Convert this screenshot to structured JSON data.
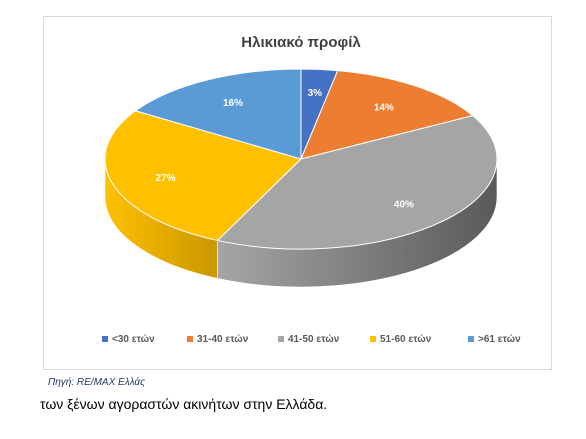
{
  "chart_data": {
    "type": "pie",
    "title": "Ηλικιακό προφίλ",
    "categories": [
      "<30 ετών",
      "31-40 ετών",
      "41-50 ετών",
      "51-60 ετών",
      ">61 ετών"
    ],
    "values": [
      3,
      14,
      40,
      27,
      16
    ],
    "data_labels": [
      "3%",
      "14%",
      "40%",
      "27%",
      "16%"
    ],
    "colors": [
      "#4472c4",
      "#ed7d31",
      "#a5a5a5",
      "#ffc000",
      "#5b9bd5"
    ],
    "side_colors": [
      "#2f528f",
      "#b45f1c",
      "#5a5a5a",
      "#c99700",
      "#3e74a8"
    ],
    "legend_position": "bottom",
    "style": "3d"
  },
  "source_note": "Πηγή: RE/MAX Ελλάς",
  "caption": "των ξένων αγοραστών ακινήτων στην Ελλάδα."
}
